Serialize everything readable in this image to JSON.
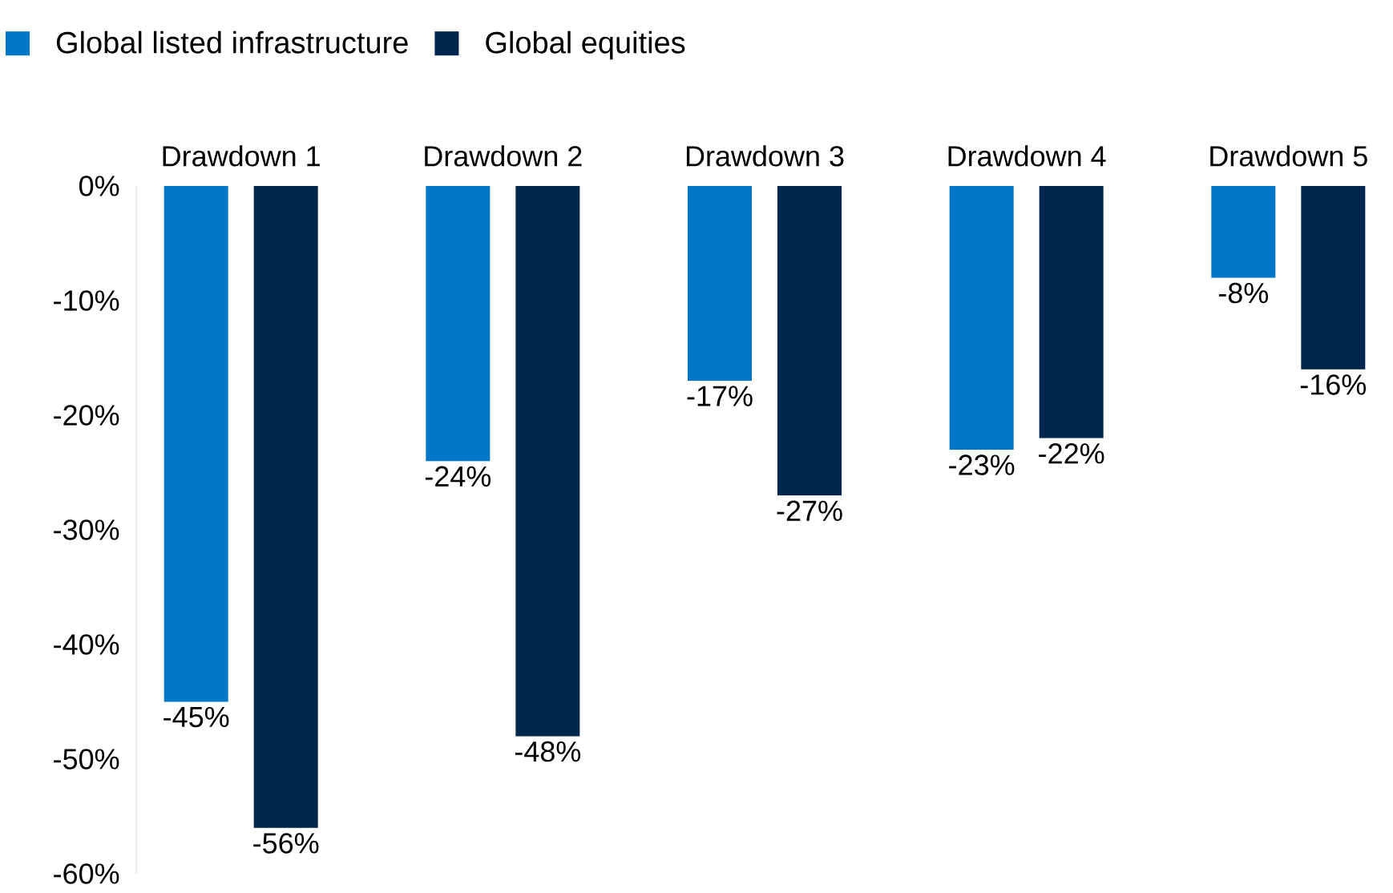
{
  "chart_data": {
    "type": "bar",
    "categories": [
      "Drawdown 1",
      "Drawdown 2",
      "Drawdown 3",
      "Drawdown 4",
      "Drawdown 5"
    ],
    "series": [
      {
        "name": "Global listed infrastructure",
        "color": "#0077c8",
        "values": [
          -45,
          -24,
          -17,
          -23,
          -8
        ],
        "value_labels": [
          "-45%",
          "-24%",
          "-17%",
          "-23%",
          "-8%"
        ]
      },
      {
        "name": "Global equities",
        "color": "#00264d",
        "values": [
          -56,
          -48,
          -27,
          -22,
          -16
        ],
        "value_labels": [
          "-56%",
          "-48%",
          "-27%",
          "-22%",
          "-16%"
        ]
      }
    ],
    "ylim": [
      -60,
      0
    ],
    "yticks": [
      {
        "value": 0,
        "label": "0%"
      },
      {
        "value": -10,
        "label": "-10%"
      },
      {
        "value": -20,
        "label": "-20%"
      },
      {
        "value": -30,
        "label": "-30%"
      },
      {
        "value": -40,
        "label": "-40%"
      },
      {
        "value": -50,
        "label": "-50%"
      },
      {
        "value": -60,
        "label": "-60%"
      }
    ],
    "legend": "top left"
  }
}
